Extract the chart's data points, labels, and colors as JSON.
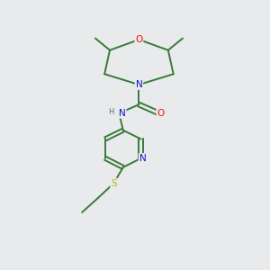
{
  "bg_color": "#e8eaeb",
  "bond_color": "#3a7a3a",
  "atom_colors": {
    "O": "#ee1111",
    "N": "#1111cc",
    "S": "#bbbb00",
    "H": "#557777"
  },
  "figsize": [
    3.0,
    3.0
  ],
  "dpi": 100
}
